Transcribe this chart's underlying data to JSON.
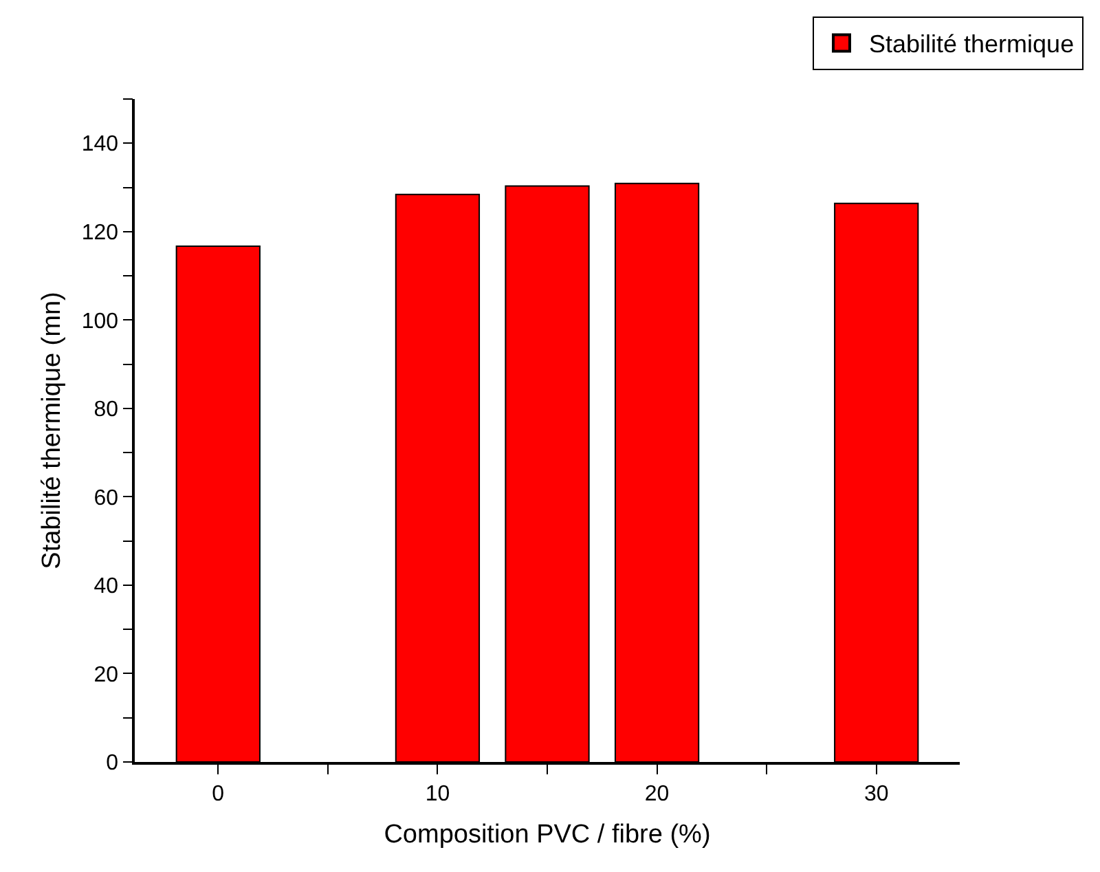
{
  "chart_data": {
    "type": "bar",
    "xlabel": "Composition PVC / fibre (%)",
    "ylabel": "Stabilité thermique (mn)",
    "x": [
      0,
      10,
      15,
      20,
      30
    ],
    "series": [
      {
        "name": "Stabilité thermique",
        "color": "#ff0000",
        "values": [
          116.7,
          128.4,
          130.3,
          130.9,
          126.4
        ]
      }
    ],
    "xlim": [
      -3.8,
      33.8
    ],
    "xticks": [
      0,
      {
        "value": 5,
        "label": null
      },
      10,
      {
        "value": 15,
        "label": null
      },
      20,
      {
        "value": 25,
        "label": null
      },
      30
    ],
    "ylim": [
      0,
      150
    ],
    "yticks": [
      0,
      {
        "value": 10,
        "label": null
      },
      20,
      {
        "value": 30,
        "label": null
      },
      40,
      {
        "value": 50,
        "label": null
      },
      60,
      {
        "value": 70,
        "label": null
      },
      80,
      {
        "value": 90,
        "label": null
      },
      100,
      {
        "value": 110,
        "label": null
      },
      120,
      {
        "value": 130,
        "label": null
      },
      140,
      {
        "value": 150,
        "label": null
      }
    ],
    "grid": false,
    "legend": "top right"
  }
}
